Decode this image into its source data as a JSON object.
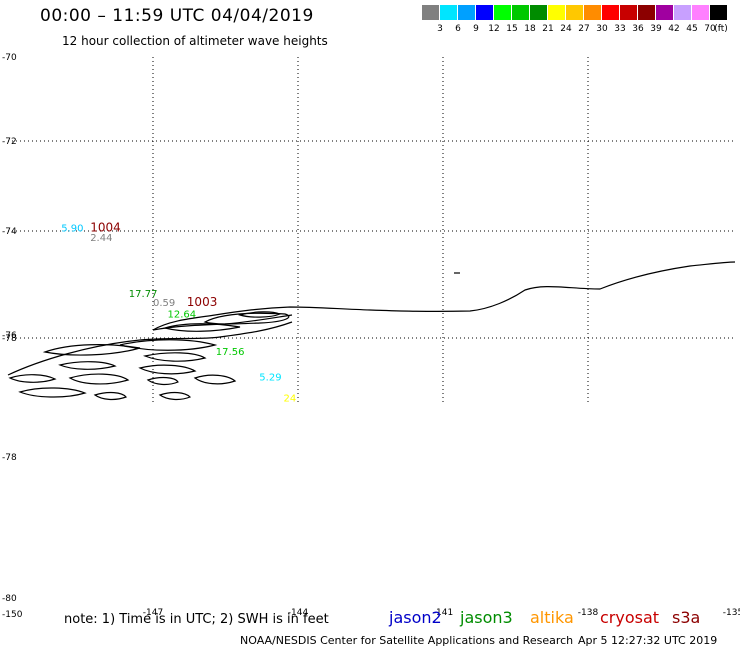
{
  "header": {
    "title": "00:00 – 11:59 UTC 04/04/2019",
    "subtitle": "12 hour collection of altimeter wave heights"
  },
  "legend": {
    "unit": "(ft)",
    "bins": [
      {
        "label": "3",
        "color": "#808080"
      },
      {
        "label": "6",
        "color": "#00e5ff"
      },
      {
        "label": "9",
        "color": "#00a0ff"
      },
      {
        "label": "12",
        "color": "#0000ff"
      },
      {
        "label": "15",
        "color": "#00ff00"
      },
      {
        "label": "18",
        "color": "#00c800"
      },
      {
        "label": "21",
        "color": "#008c00"
      },
      {
        "label": "24",
        "color": "#ffff00"
      },
      {
        "label": "27",
        "color": "#ffc800"
      },
      {
        "label": "30",
        "color": "#ff8c00"
      },
      {
        "label": "33",
        "color": "#ff0000"
      },
      {
        "label": "36",
        "color": "#c80000"
      },
      {
        "label": "39",
        "color": "#8c0000"
      },
      {
        "label": "42",
        "color": "#a000a0"
      },
      {
        "label": "45",
        "color": "#c8a0ff"
      },
      {
        "label": "70",
        "color": "#ff80ff"
      },
      {
        "label": "",
        "color": "#000000"
      }
    ]
  },
  "axes": {
    "lat_labels": [
      "-70",
      "-72",
      "-74",
      "-76",
      "-78",
      "-78",
      "-80"
    ],
    "lon_labels": [
      "-150",
      "-147",
      "-144",
      "-141",
      "-138",
      "-135"
    ]
  },
  "observations": [
    {
      "value": "5.90",
      "color": "#00c8ff",
      "lon": -148.9,
      "lat": -73.95
    },
    {
      "value": "2.44",
      "color": "#808080",
      "lon": -148.3,
      "lat": -74.15
    },
    {
      "value": "1004",
      "color": "#8c0000",
      "lon": -148.3,
      "lat": -73.95
    },
    {
      "value": "17.77",
      "color": "#008c00",
      "lon": -147.5,
      "lat": -75.35
    },
    {
      "value": "0.59",
      "color": "#808080",
      "lon": -147.0,
      "lat": -75.55
    },
    {
      "value": "1003",
      "color": "#8c0000",
      "lon": -146.3,
      "lat": -75.55
    },
    {
      "value": "12.64",
      "color": "#00c800",
      "lon": -146.7,
      "lat": -75.8
    },
    {
      "value": "17.56",
      "color": "#00c800",
      "lon": -145.7,
      "lat": -76.6
    },
    {
      "value": "5.29",
      "color": "#00e5ff",
      "lon": -144.8,
      "lat": -77.15
    },
    {
      "value": "24",
      "color": "#ffff00",
      "lon": -144.3,
      "lat": -77.6
    }
  ],
  "footer": {
    "note": "note: 1) Time is in UTC; 2) SWH is in feet",
    "satellites": [
      {
        "name": "jason2",
        "color": "#0000c8"
      },
      {
        "name": "jason3",
        "color": "#008c00"
      },
      {
        "name": "altika",
        "color": "#ff9600"
      },
      {
        "name": "cryosat",
        "color": "#c80000"
      },
      {
        "name": "s3a",
        "color": "#8c0000"
      }
    ],
    "credit": "NOAA/NESDIS Center for Satellite Applications and Research",
    "timestamp": "Apr  5 12:27:32 UTC 2019"
  }
}
